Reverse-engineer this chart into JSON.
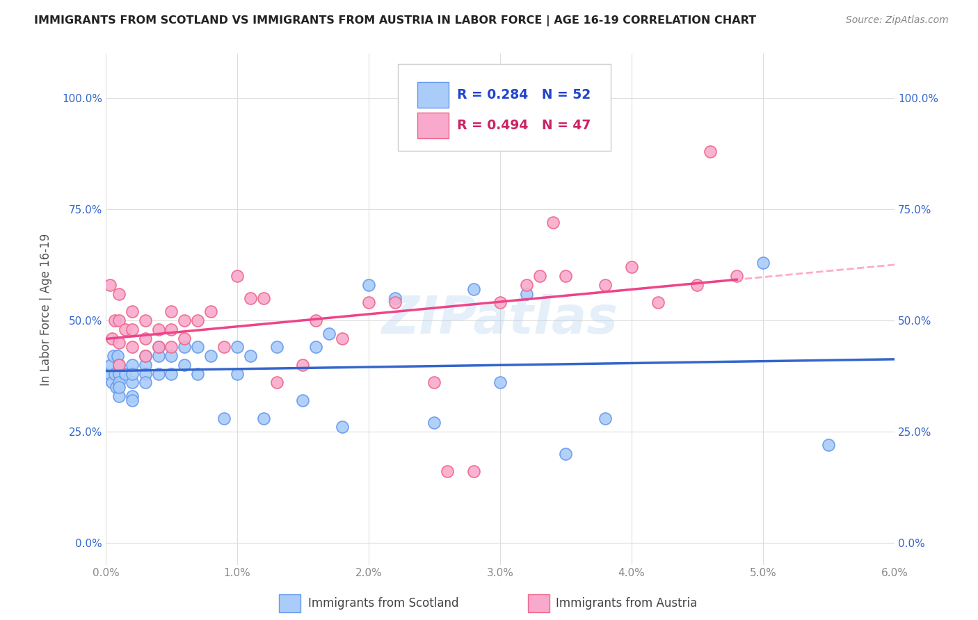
{
  "title": "IMMIGRANTS FROM SCOTLAND VS IMMIGRANTS FROM AUSTRIA IN LABOR FORCE | AGE 16-19 CORRELATION CHART",
  "source": "Source: ZipAtlas.com",
  "ylabel": "In Labor Force | Age 16-19",
  "ytick_labels": [
    "0.0%",
    "25.0%",
    "50.0%",
    "75.0%",
    "100.0%"
  ],
  "ytick_values": [
    0.0,
    0.25,
    0.5,
    0.75,
    1.0
  ],
  "xlim": [
    0.0,
    0.06
  ],
  "ylim": [
    -0.05,
    1.1
  ],
  "scotland_color": "#aaccf8",
  "scotland_edge_color": "#6699ee",
  "austria_color": "#f9aacc",
  "austria_edge_color": "#ee6688",
  "scotland_line_color": "#3366cc",
  "austria_line_color": "#ee4488",
  "austria_dashed_color": "#ffaacc",
  "R_scotland": 0.284,
  "N_scotland": 52,
  "R_austria": 0.494,
  "N_austria": 47,
  "watermark": "ZIPatlas",
  "scotland_x": [
    0.0003,
    0.0004,
    0.0005,
    0.0006,
    0.0007,
    0.0008,
    0.0009,
    0.001,
    0.001,
    0.001,
    0.001,
    0.001,
    0.0015,
    0.002,
    0.002,
    0.002,
    0.002,
    0.002,
    0.003,
    0.003,
    0.003,
    0.003,
    0.004,
    0.004,
    0.004,
    0.005,
    0.005,
    0.006,
    0.006,
    0.007,
    0.007,
    0.008,
    0.009,
    0.01,
    0.01,
    0.011,
    0.012,
    0.013,
    0.015,
    0.016,
    0.017,
    0.018,
    0.02,
    0.022,
    0.025,
    0.028,
    0.03,
    0.032,
    0.035,
    0.038,
    0.05,
    0.055
  ],
  "scotland_y": [
    0.38,
    0.4,
    0.36,
    0.42,
    0.38,
    0.35,
    0.42,
    0.4,
    0.38,
    0.36,
    0.33,
    0.35,
    0.38,
    0.4,
    0.36,
    0.33,
    0.38,
    0.32,
    0.4,
    0.38,
    0.42,
    0.36,
    0.42,
    0.38,
    0.44,
    0.42,
    0.38,
    0.44,
    0.4,
    0.44,
    0.38,
    0.42,
    0.28,
    0.44,
    0.38,
    0.42,
    0.28,
    0.44,
    0.32,
    0.44,
    0.47,
    0.26,
    0.58,
    0.55,
    0.27,
    0.57,
    0.36,
    0.56,
    0.2,
    0.28,
    0.63,
    0.22
  ],
  "austria_x": [
    0.0003,
    0.0005,
    0.0007,
    0.001,
    0.001,
    0.001,
    0.001,
    0.0015,
    0.002,
    0.002,
    0.002,
    0.003,
    0.003,
    0.003,
    0.004,
    0.004,
    0.005,
    0.005,
    0.005,
    0.006,
    0.006,
    0.007,
    0.008,
    0.009,
    0.01,
    0.011,
    0.012,
    0.013,
    0.015,
    0.016,
    0.018,
    0.02,
    0.022,
    0.025,
    0.026,
    0.028,
    0.03,
    0.032,
    0.033,
    0.034,
    0.035,
    0.038,
    0.04,
    0.042,
    0.045,
    0.046,
    0.048
  ],
  "austria_y": [
    0.58,
    0.46,
    0.5,
    0.56,
    0.5,
    0.45,
    0.4,
    0.48,
    0.52,
    0.48,
    0.44,
    0.5,
    0.46,
    0.42,
    0.48,
    0.44,
    0.52,
    0.48,
    0.44,
    0.5,
    0.46,
    0.5,
    0.52,
    0.44,
    0.6,
    0.55,
    0.55,
    0.36,
    0.4,
    0.5,
    0.46,
    0.54,
    0.54,
    0.36,
    0.16,
    0.16,
    0.54,
    0.58,
    0.6,
    0.72,
    0.6,
    0.58,
    0.62,
    0.54,
    0.58,
    0.88,
    0.6
  ]
}
